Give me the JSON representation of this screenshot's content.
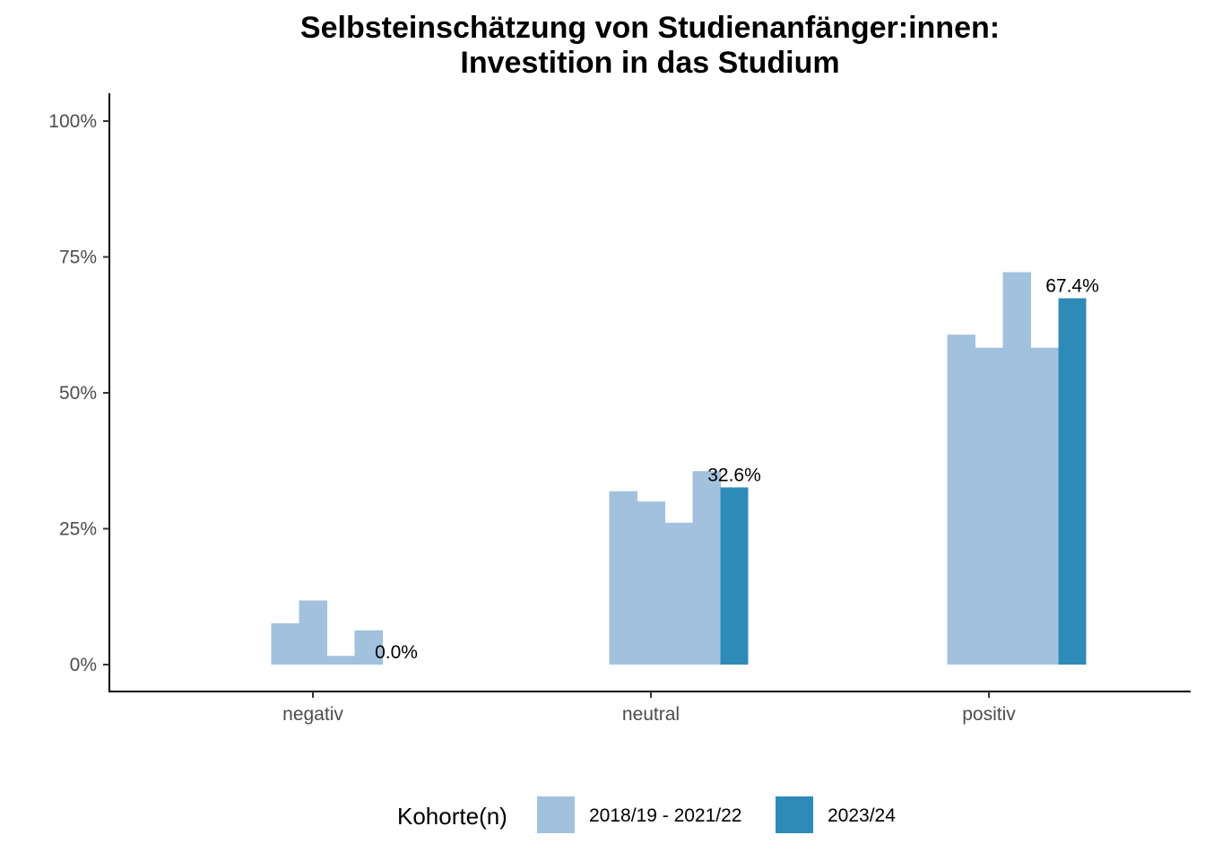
{
  "chart_data": {
    "type": "bar",
    "title": "Selbsteinschätzung von Studienanfänger:innen:",
    "subtitle": "Investition in das Studium",
    "xlabel": "",
    "ylabel": "",
    "categories": [
      "negativ",
      "neutral",
      "positiv"
    ],
    "ylim": [
      0,
      1.05
    ],
    "yticks": [
      "0%",
      "25%",
      "50%",
      "75%",
      "100%"
    ],
    "ytick_values": [
      0,
      0.25,
      0.5,
      0.75,
      1.0
    ],
    "grid": false,
    "legend_position": "bottom",
    "legend_title": "Kohorte(n)",
    "series": [
      {
        "name": "2018/19 - 2021/22",
        "color": "#a2c1de",
        "cohorts": 4,
        "values": [
          [
            0.076,
            0.118,
            0.016,
            0.063
          ],
          [
            0.319,
            0.3,
            0.261,
            0.356
          ],
          [
            0.607,
            0.583,
            0.722,
            0.583
          ]
        ]
      },
      {
        "name": "2023/24",
        "color": "#2e8bb8",
        "values": [
          0.0,
          0.326,
          0.674
        ],
        "labels": [
          "0.0%",
          "32.6%",
          "67.4%"
        ]
      }
    ]
  }
}
